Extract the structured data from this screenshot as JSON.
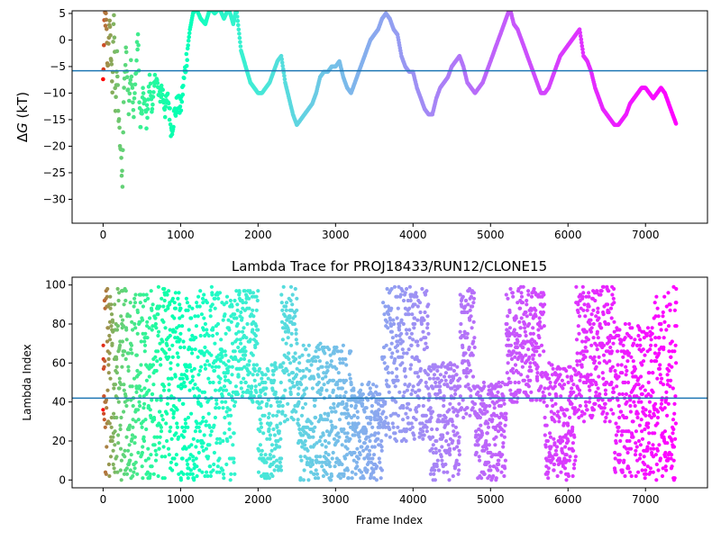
{
  "chart_data": [
    {
      "type": "scatter",
      "title": "",
      "xlabel": "",
      "ylabel": "ΔG (kT)",
      "ylabel_parts": {
        "delta": "Δ",
        "var": "G",
        "unit": " (kT)"
      },
      "xlim": [
        -400,
        7800
      ],
      "ylim": [
        -34.5,
        5.5
      ],
      "xticks": [
        0,
        1000,
        2000,
        3000,
        4000,
        5000,
        6000,
        7000
      ],
      "xtick_labels": [
        "0",
        "1000",
        "2000",
        "3000",
        "4000",
        "5000",
        "6000",
        "7000"
      ],
      "yticks": [
        -30,
        -25,
        -20,
        -15,
        -10,
        -5,
        0,
        5
      ],
      "ytick_labels": [
        "−30",
        "−25",
        "−20",
        "−15",
        "−10",
        "−5",
        "0",
        "5"
      ],
      "hline": -5.8,
      "hline_color": "#1f77b4",
      "colormap": "rainbow (early frames red → late frames violet)",
      "marker_size_note": "small dots",
      "trace_points": [
        [
          0,
          -8
        ],
        [
          20,
          5
        ],
        [
          40,
          3
        ],
        [
          60,
          -6
        ],
        [
          80,
          4
        ],
        [
          100,
          -2
        ],
        [
          120,
          -9
        ],
        [
          140,
          5
        ],
        [
          160,
          -12
        ],
        [
          180,
          -4
        ],
        [
          200,
          -15
        ],
        [
          230,
          -22
        ],
        [
          250,
          -26
        ],
        [
          270,
          -8
        ],
        [
          300,
          -2
        ],
        [
          330,
          -12
        ],
        [
          360,
          -5
        ],
        [
          390,
          -14
        ],
        [
          420,
          -7
        ],
        [
          450,
          1
        ],
        [
          480,
          -17
        ],
        [
          520,
          -10
        ],
        [
          560,
          -15
        ],
        [
          600,
          -8
        ],
        [
          640,
          -13
        ],
        [
          680,
          -6
        ],
        [
          720,
          -11
        ],
        [
          760,
          -9
        ],
        [
          800,
          -13
        ],
        [
          840,
          -11
        ],
        [
          880,
          -17
        ],
        [
          920,
          -14
        ],
        [
          960,
          -12
        ],
        [
          1000,
          -13
        ],
        [
          1040,
          -8
        ],
        [
          1080,
          -3
        ],
        [
          1120,
          2
        ],
        [
          1160,
          5
        ],
        [
          1200,
          6
        ],
        [
          1260,
          4
        ],
        [
          1320,
          3
        ],
        [
          1380,
          6
        ],
        [
          1440,
          5
        ],
        [
          1500,
          6
        ],
        [
          1560,
          4
        ],
        [
          1620,
          6
        ],
        [
          1680,
          3
        ],
        [
          1720,
          6
        ],
        [
          1750,
          2
        ],
        [
          1780,
          -2
        ],
        [
          1820,
          -4
        ],
        [
          1860,
          -6
        ],
        [
          1900,
          -8
        ],
        [
          1950,
          -9
        ],
        [
          2000,
          -10
        ],
        [
          2050,
          -10
        ],
        [
          2100,
          -9
        ],
        [
          2150,
          -8
        ],
        [
          2200,
          -6
        ],
        [
          2250,
          -4
        ],
        [
          2300,
          -3
        ],
        [
          2350,
          -8
        ],
        [
          2400,
          -11
        ],
        [
          2450,
          -14
        ],
        [
          2500,
          -16
        ],
        [
          2550,
          -15
        ],
        [
          2600,
          -14
        ],
        [
          2650,
          -13
        ],
        [
          2700,
          -12
        ],
        [
          2750,
          -10
        ],
        [
          2800,
          -7
        ],
        [
          2850,
          -6
        ],
        [
          2900,
          -6
        ],
        [
          2950,
          -5
        ],
        [
          3000,
          -5
        ],
        [
          3050,
          -4
        ],
        [
          3100,
          -7
        ],
        [
          3150,
          -9
        ],
        [
          3200,
          -10
        ],
        [
          3250,
          -8
        ],
        [
          3300,
          -6
        ],
        [
          3350,
          -4
        ],
        [
          3400,
          -2
        ],
        [
          3450,
          0
        ],
        [
          3500,
          1
        ],
        [
          3550,
          2
        ],
        [
          3600,
          4
        ],
        [
          3650,
          5
        ],
        [
          3700,
          4
        ],
        [
          3750,
          2
        ],
        [
          3800,
          1
        ],
        [
          3850,
          -3
        ],
        [
          3900,
          -5
        ],
        [
          3950,
          -6
        ],
        [
          4000,
          -6
        ],
        [
          4050,
          -9
        ],
        [
          4100,
          -11
        ],
        [
          4150,
          -13
        ],
        [
          4200,
          -14
        ],
        [
          4250,
          -14
        ],
        [
          4300,
          -11
        ],
        [
          4350,
          -9
        ],
        [
          4400,
          -8
        ],
        [
          4450,
          -7
        ],
        [
          4500,
          -5
        ],
        [
          4550,
          -4
        ],
        [
          4600,
          -3
        ],
        [
          4650,
          -5
        ],
        [
          4700,
          -8
        ],
        [
          4750,
          -9
        ],
        [
          4800,
          -10
        ],
        [
          4850,
          -9
        ],
        [
          4900,
          -8
        ],
        [
          4950,
          -6
        ],
        [
          5000,
          -4
        ],
        [
          5050,
          -2
        ],
        [
          5100,
          0
        ],
        [
          5150,
          2
        ],
        [
          5200,
          4
        ],
        [
          5250,
          6
        ],
        [
          5300,
          3
        ],
        [
          5350,
          2
        ],
        [
          5400,
          0
        ],
        [
          5450,
          -2
        ],
        [
          5500,
          -4
        ],
        [
          5550,
          -6
        ],
        [
          5600,
          -8
        ],
        [
          5650,
          -10
        ],
        [
          5700,
          -10
        ],
        [
          5750,
          -9
        ],
        [
          5800,
          -7
        ],
        [
          5850,
          -5
        ],
        [
          5900,
          -3
        ],
        [
          5950,
          -2
        ],
        [
          6000,
          -1
        ],
        [
          6050,
          0
        ],
        [
          6100,
          1
        ],
        [
          6150,
          2
        ],
        [
          6200,
          -3
        ],
        [
          6250,
          -4
        ],
        [
          6300,
          -6
        ],
        [
          6350,
          -9
        ],
        [
          6400,
          -11
        ],
        [
          6450,
          -13
        ],
        [
          6500,
          -14
        ],
        [
          6550,
          -15
        ],
        [
          6600,
          -16
        ],
        [
          6650,
          -16
        ],
        [
          6700,
          -15
        ],
        [
          6750,
          -14
        ],
        [
          6800,
          -12
        ],
        [
          6850,
          -11
        ],
        [
          6900,
          -10
        ],
        [
          6950,
          -9
        ],
        [
          7000,
          -9
        ],
        [
          7050,
          -10
        ],
        [
          7100,
          -11
        ],
        [
          7150,
          -10
        ],
        [
          7200,
          -9
        ],
        [
          7250,
          -10
        ],
        [
          7300,
          -12
        ],
        [
          7350,
          -14
        ],
        [
          7400,
          -16
        ]
      ]
    },
    {
      "type": "scatter",
      "title": "Lambda Trace for PROJ18433/RUN12/CLONE15",
      "xlabel": "Frame Index",
      "ylabel": "Lambda Index",
      "xlim": [
        -400,
        7800
      ],
      "ylim": [
        -4,
        104
      ],
      "xticks": [
        0,
        1000,
        2000,
        3000,
        4000,
        5000,
        6000,
        7000
      ],
      "xtick_labels": [
        "0",
        "1000",
        "2000",
        "3000",
        "4000",
        "5000",
        "6000",
        "7000"
      ],
      "yticks": [
        0,
        20,
        40,
        60,
        80,
        100
      ],
      "ytick_labels": [
        "0",
        "20",
        "40",
        "60",
        "80",
        "100"
      ],
      "hline": 42,
      "hline_color": "#1f77b4",
      "n_frames": 7400,
      "y_range": [
        0,
        99
      ],
      "colormap": "rainbow (early frames red → late frames violet)",
      "density_profile": [
        {
          "x": [
            0,
            1700
          ],
          "y": [
            0,
            99
          ],
          "note": "spread uniformly"
        },
        {
          "x": [
            1700,
            2000
          ],
          "y": [
            40,
            99
          ]
        },
        {
          "x": [
            2000,
            2300
          ],
          "y": [
            0,
            60
          ]
        },
        {
          "x": [
            2300,
            2500
          ],
          "y": [
            30,
            99
          ]
        },
        {
          "x": [
            2500,
            3200
          ],
          "y": [
            0,
            70
          ]
        },
        {
          "x": [
            3200,
            3600
          ],
          "y": [
            0,
            50
          ]
        },
        {
          "x": [
            3600,
            4200
          ],
          "y": [
            20,
            99
          ]
        },
        {
          "x": [
            4200,
            4600
          ],
          "y": [
            0,
            60
          ]
        },
        {
          "x": [
            4600,
            4800
          ],
          "y": [
            30,
            99
          ]
        },
        {
          "x": [
            4800,
            5200
          ],
          "y": [
            0,
            50
          ]
        },
        {
          "x": [
            5200,
            5700
          ],
          "y": [
            40,
            99
          ]
        },
        {
          "x": [
            5700,
            6100
          ],
          "y": [
            0,
            60
          ]
        },
        {
          "x": [
            6100,
            6600
          ],
          "y": [
            30,
            99
          ]
        },
        {
          "x": [
            6600,
            7100
          ],
          "y": [
            0,
            80
          ]
        },
        {
          "x": [
            7100,
            7400
          ],
          "y": [
            0,
            99
          ]
        }
      ]
    }
  ]
}
